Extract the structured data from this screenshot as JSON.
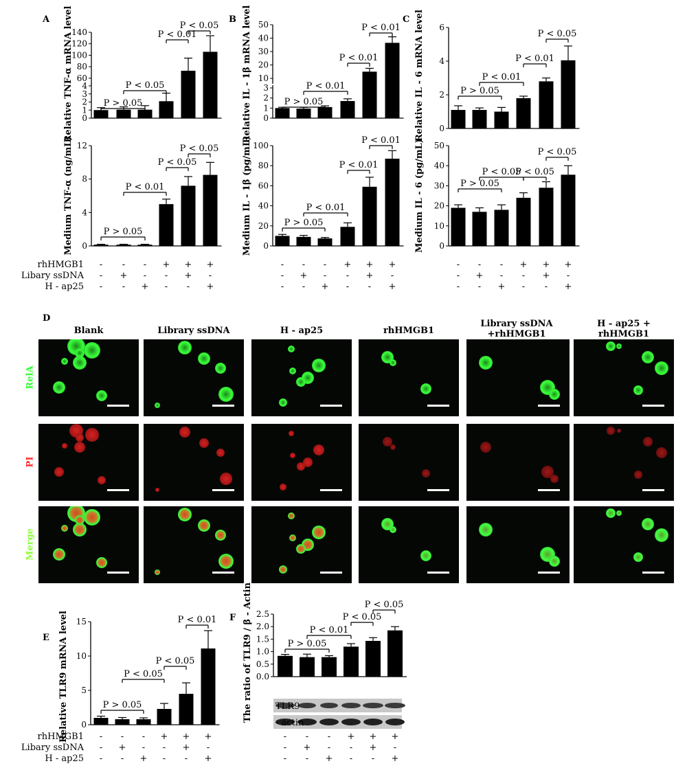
{
  "colors": {
    "bar": "#000000",
    "rela": "#33ff33",
    "pi": "#ff2a2a",
    "merge": "#8cff3a",
    "bg": "#ffffff"
  },
  "treatments": {
    "labels": [
      "rhHMGB1",
      "Libary ssDNA",
      "H - ap25"
    ],
    "signs": [
      [
        "-",
        "-",
        "-",
        "+",
        "+",
        "+"
      ],
      [
        "-",
        "+",
        "-",
        "-",
        "+",
        "-"
      ],
      [
        "-",
        "-",
        "+",
        "-",
        "-",
        "+"
      ]
    ]
  },
  "panels": {
    "A": "A",
    "B": "B",
    "C": "C",
    "D": "D",
    "E": "E",
    "F": "F"
  },
  "chart_data": [
    {
      "panel": "A",
      "type": "bar",
      "broken_axis": true,
      "ylabel": "Relative TNF-α   mRNA level",
      "values": [
        1.0,
        1.05,
        1.05,
        2.1,
        73,
        106
      ],
      "errors": [
        0.3,
        0.35,
        0.5,
        1.0,
        22,
        28
      ],
      "yticks_lower": [
        "0",
        "1",
        "2",
        "3",
        "4"
      ],
      "yticks_upper": [
        "60",
        "80",
        "100",
        "120",
        "140"
      ],
      "annotations": [
        {
          "text": "P > 0.05",
          "from": 1,
          "to": 3
        },
        {
          "text": "P < 0.05",
          "from": 2,
          "to": 4
        },
        {
          "text": "P < 0.01",
          "from": 4,
          "to": 5
        },
        {
          "text": "P < 0.05",
          "from": 5,
          "to": 6
        }
      ]
    },
    {
      "panel": "B",
      "type": "bar",
      "broken_axis": true,
      "ylabel": "Relative IL - 1β   mRNA level",
      "values": [
        1.0,
        0.95,
        1.1,
        1.7,
        15,
        36.5
      ],
      "errors": [
        0.08,
        0.12,
        0.12,
        0.22,
        2.5,
        4.5
      ],
      "yticks_lower": [
        "0",
        "1",
        "2",
        "3"
      ],
      "yticks_upper": [
        "10",
        "20",
        "30",
        "40",
        "50"
      ],
      "annotations": [
        {
          "text": "P > 0.05",
          "from": 1,
          "to": 3
        },
        {
          "text": "P < 0.01",
          "from": 2,
          "to": 4
        },
        {
          "text": "P < 0.01",
          "from": 4,
          "to": 5
        },
        {
          "text": "P < 0.01",
          "from": 5,
          "to": 6
        }
      ]
    },
    {
      "panel": "C",
      "type": "bar",
      "ylabel": "Relative IL - 6 mRNA level",
      "ylim": [
        0,
        6
      ],
      "values": [
        1.1,
        1.1,
        1.0,
        1.8,
        2.8,
        4.05
      ],
      "errors": [
        0.25,
        0.12,
        0.25,
        0.12,
        0.2,
        0.85
      ],
      "yticks": [
        "0",
        "2",
        "4",
        "6"
      ],
      "annotations": [
        {
          "text": "P > 0.05",
          "from": 1,
          "to": 3
        },
        {
          "text": "P < 0.01",
          "from": 2,
          "to": 4
        },
        {
          "text": "P < 0.01",
          "from": 4,
          "to": 5
        },
        {
          "text": "P < 0.05",
          "from": 5,
          "to": 6
        }
      ]
    },
    {
      "panel": "A",
      "type": "bar",
      "ylabel": "Medium TNF-α (ng/mL)",
      "ylim": [
        0,
        12
      ],
      "values": [
        0.15,
        0.15,
        0.15,
        5.0,
        7.2,
        8.5
      ],
      "errors": [
        0.05,
        0.05,
        0.05,
        0.6,
        1.1,
        1.5
      ],
      "yticks": [
        "0",
        "4",
        "8",
        "12"
      ],
      "annotations": [
        {
          "text": "P > 0.05",
          "from": 1,
          "to": 3
        },
        {
          "text": "P < 0.01",
          "from": 2,
          "to": 4
        },
        {
          "text": "P < 0.05",
          "from": 4,
          "to": 5
        },
        {
          "text": "P < 0.05",
          "from": 5,
          "to": 6
        }
      ]
    },
    {
      "panel": "B",
      "type": "bar",
      "ylabel": "Medium IL - 1β  (pg/mL)",
      "ylim": [
        0,
        100
      ],
      "values": [
        10,
        9,
        7.5,
        19,
        59,
        87
      ],
      "errors": [
        1.5,
        1.5,
        1.0,
        4.0,
        9.5,
        8.0
      ],
      "yticks": [
        "0",
        "20",
        "40",
        "60",
        "80",
        "100"
      ],
      "annotations": [
        {
          "text": "P > 0.05",
          "from": 1,
          "to": 3
        },
        {
          "text": "P < 0.01",
          "from": 2,
          "to": 4
        },
        {
          "text": "P < 0.01",
          "from": 4,
          "to": 5
        },
        {
          "text": "P < 0.01",
          "from": 5,
          "to": 6
        }
      ]
    },
    {
      "panel": "C",
      "type": "bar",
      "ylabel": "Medium IL - 6 (pg/mL)",
      "ylim": [
        0,
        50
      ],
      "values": [
        19,
        17,
        18,
        24,
        29,
        35.5
      ],
      "errors": [
        1.5,
        2.0,
        2.5,
        2.5,
        3.0,
        4.5
      ],
      "yticks": [
        "0",
        "10",
        "20",
        "30",
        "40",
        "50"
      ],
      "annotations": [
        {
          "text": "P > 0.05",
          "from": 1,
          "to": 3
        },
        {
          "text": "P < 0.05",
          "from": 2,
          "to": 4
        },
        {
          "text": "P < 0.05",
          "from": 4,
          "to": 5
        },
        {
          "text": "P < 0.05",
          "from": 5,
          "to": 6
        }
      ]
    },
    {
      "panel": "E",
      "type": "bar",
      "ylabel": "Relative TLR9 mRNA level",
      "ylim": [
        0,
        15
      ],
      "values": [
        1.0,
        0.8,
        0.8,
        2.3,
        4.5,
        11.1
      ],
      "errors": [
        0.25,
        0.25,
        0.2,
        0.8,
        1.6,
        2.6
      ],
      "yticks": [
        "0",
        "5",
        "10",
        "15"
      ],
      "annotations": [
        {
          "text": "P > 0.05",
          "from": 1,
          "to": 3
        },
        {
          "text": "P < 0.05",
          "from": 2,
          "to": 4
        },
        {
          "text": "P < 0.05",
          "from": 4,
          "to": 5
        },
        {
          "text": "P < 0.01",
          "from": 5,
          "to": 6
        }
      ]
    },
    {
      "panel": "F",
      "type": "bar",
      "ylabel": "The ratio of TLR9 /  β - Actin",
      "ylim": [
        0,
        2.5
      ],
      "values": [
        0.83,
        0.78,
        0.78,
        1.2,
        1.43,
        1.85
      ],
      "errors": [
        0.06,
        0.12,
        0.06,
        0.12,
        0.13,
        0.15
      ],
      "yticks": [
        "0.0",
        "0.5",
        "1.0",
        "1.5",
        "2.0",
        "2.5"
      ],
      "annotations": [
        {
          "text": "P > 0.05",
          "from": 1,
          "to": 3
        },
        {
          "text": "P < 0.01",
          "from": 2,
          "to": 4
        },
        {
          "text": "P < 0.05",
          "from": 4,
          "to": 5
        },
        {
          "text": "P < 0.05",
          "from": 5,
          "to": 6
        }
      ]
    }
  ],
  "western": {
    "bands": [
      "TLR9",
      "- actin"
    ]
  },
  "microscopy": {
    "columns": [
      "Blank",
      "Library ssDNA",
      "H - ap25",
      "rhHMGB1",
      "Library ssDNA +rhHMGB1",
      "H - ap25 + rhHMGB1"
    ],
    "rows": [
      "RelA",
      "PI",
      "Merge"
    ]
  }
}
